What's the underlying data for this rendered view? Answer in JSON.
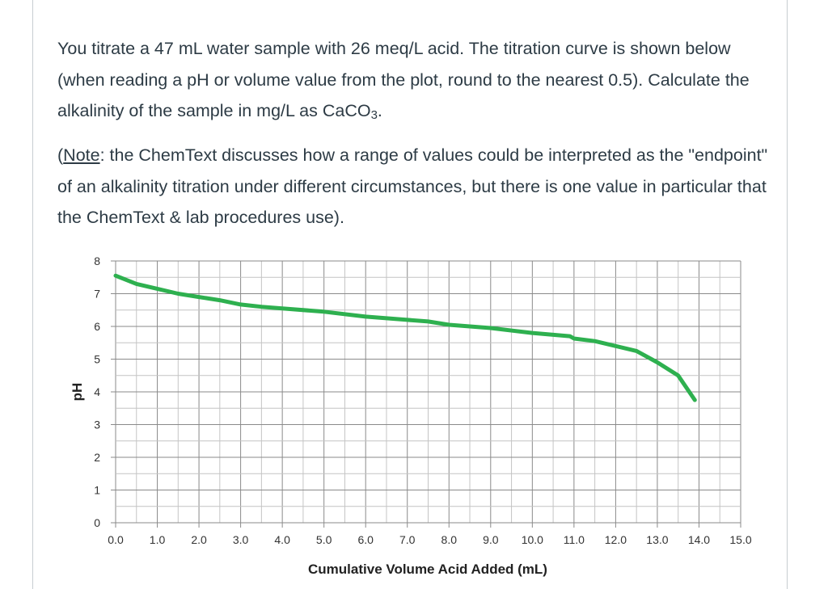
{
  "question": {
    "paragraph1_a": "You titrate a 47 mL water sample with 26 meq/L acid. The titration curve is shown below (when reading a pH or volume value from the plot, round to the nearest 0.5).  Calculate the alkalinity of the sample in mg/L as CaCO",
    "paragraph1_sub": "3",
    "paragraph1_b": ".",
    "note_label": "Note",
    "paragraph2_a": "(",
    "paragraph2_b": ": the ChemText discusses how a range of values could be interpreted as the \"endpoint\" of an alkalinity titration under different circumstances, but there is one value in particular that the ChemText & lab procedures use)."
  },
  "chart_data": {
    "type": "line",
    "xlabel": "Cumulative Volume Acid Added (mL)",
    "ylabel": "pH",
    "xlim": [
      0,
      15
    ],
    "ylim": [
      0,
      8
    ],
    "x_ticks": [
      "0.0",
      "1.0",
      "2.0",
      "3.0",
      "4.0",
      "5.0",
      "6.0",
      "7.0",
      "8.0",
      "9.0",
      "10.0",
      "11.0",
      "12.0",
      "13.0",
      "14.0",
      "15.0"
    ],
    "y_ticks": [
      "0",
      "1",
      "2",
      "3",
      "4",
      "5",
      "6",
      "7",
      "8"
    ],
    "grid": true,
    "minor_grid_step": 0.5,
    "line_color": "#2eb04f",
    "series": [
      {
        "x": [
          0,
          0.5,
          1,
          1.5,
          2,
          2.5,
          3,
          3.5,
          4,
          5,
          6,
          7,
          7.5,
          8,
          9,
          10,
          10.9,
          11,
          11.5,
          12,
          12.5,
          13,
          13.5,
          13.9
        ],
        "y": [
          7.55,
          7.3,
          7.15,
          7.0,
          6.9,
          6.8,
          6.67,
          6.6,
          6.55,
          6.45,
          6.3,
          6.2,
          6.15,
          6.05,
          5.95,
          5.8,
          5.7,
          5.63,
          5.55,
          5.4,
          5.25,
          4.9,
          4.5,
          3.75
        ]
      }
    ]
  }
}
